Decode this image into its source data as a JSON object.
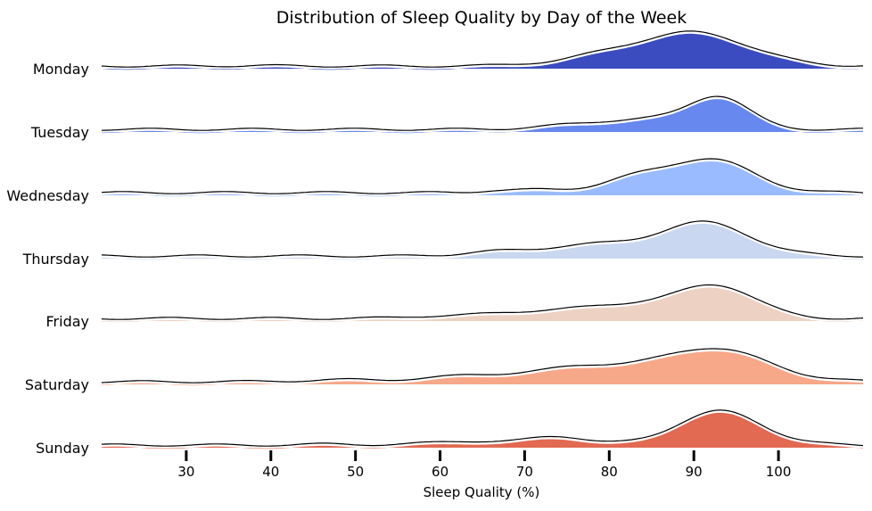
{
  "chart_data": {
    "type": "ridgeline",
    "title": "Distribution of Sleep Quality by Day of the Week",
    "xlabel": "Sleep Quality (%)",
    "ylabel": "",
    "xlim": [
      20,
      110
    ],
    "xticks": [
      30,
      40,
      50,
      60,
      70,
      80,
      90,
      100
    ],
    "grid": false,
    "series": [
      {
        "name": "Monday",
        "color": "#3b4cc0",
        "components": [
          {
            "mu": 90,
            "sigma": 6.5,
            "w": 1.0
          },
          {
            "mu": 79,
            "sigma": 4.5,
            "w": 0.22
          },
          {
            "mu": 70,
            "sigma": 3.0,
            "w": 0.04
          },
          {
            "mu": 38,
            "sigma": 2.5,
            "w": 0.015
          }
        ]
      },
      {
        "name": "Tuesday",
        "color": "#6788ee",
        "components": [
          {
            "mu": 93,
            "sigma": 3.5,
            "w": 1.0
          },
          {
            "mu": 84,
            "sigma": 6.0,
            "w": 0.33
          },
          {
            "mu": 74,
            "sigma": 4.0,
            "w": 0.06
          }
        ]
      },
      {
        "name": "Wednesday",
        "color": "#9abbff",
        "components": [
          {
            "mu": 92,
            "sigma": 5.0,
            "w": 1.0
          },
          {
            "mu": 83,
            "sigma": 4.0,
            "w": 0.38
          },
          {
            "mu": 72,
            "sigma": 4.0,
            "w": 0.09
          },
          {
            "mu": 66,
            "sigma": 2.0,
            "w": 0.04
          }
        ]
      },
      {
        "name": "Thursday",
        "color": "#c9d7f0",
        "components": [
          {
            "mu": 91,
            "sigma": 5.5,
            "w": 1.0
          },
          {
            "mu": 77,
            "sigma": 5.0,
            "w": 0.32
          },
          {
            "mu": 66,
            "sigma": 3.5,
            "w": 0.12
          }
        ]
      },
      {
        "name": "Friday",
        "color": "#edd1c2",
        "components": [
          {
            "mu": 93,
            "sigma": 4.5,
            "w": 1.0
          },
          {
            "mu": 83,
            "sigma": 6.0,
            "w": 0.45
          },
          {
            "mu": 70,
            "sigma": 6.0,
            "w": 0.2
          },
          {
            "mu": 58,
            "sigma": 3.0,
            "w": 0.05
          }
        ]
      },
      {
        "name": "Saturday",
        "color": "#f7a889",
        "components": [
          {
            "mu": 92,
            "sigma": 6.5,
            "w": 1.0
          },
          {
            "mu": 77,
            "sigma": 5.0,
            "w": 0.42
          },
          {
            "mu": 65,
            "sigma": 5.0,
            "w": 0.2
          },
          {
            "mu": 50,
            "sigma": 6.0,
            "w": 0.06
          }
        ]
      },
      {
        "name": "Sunday",
        "color": "#e26952",
        "components": [
          {
            "mu": 93,
            "sigma": 5.0,
            "w": 1.0
          },
          {
            "mu": 74,
            "sigma": 3.5,
            "w": 0.26
          },
          {
            "mu": 63,
            "sigma": 4.0,
            "w": 0.12
          },
          {
            "mu": 48,
            "sigma": 3.0,
            "w": 0.03
          }
        ]
      }
    ]
  }
}
